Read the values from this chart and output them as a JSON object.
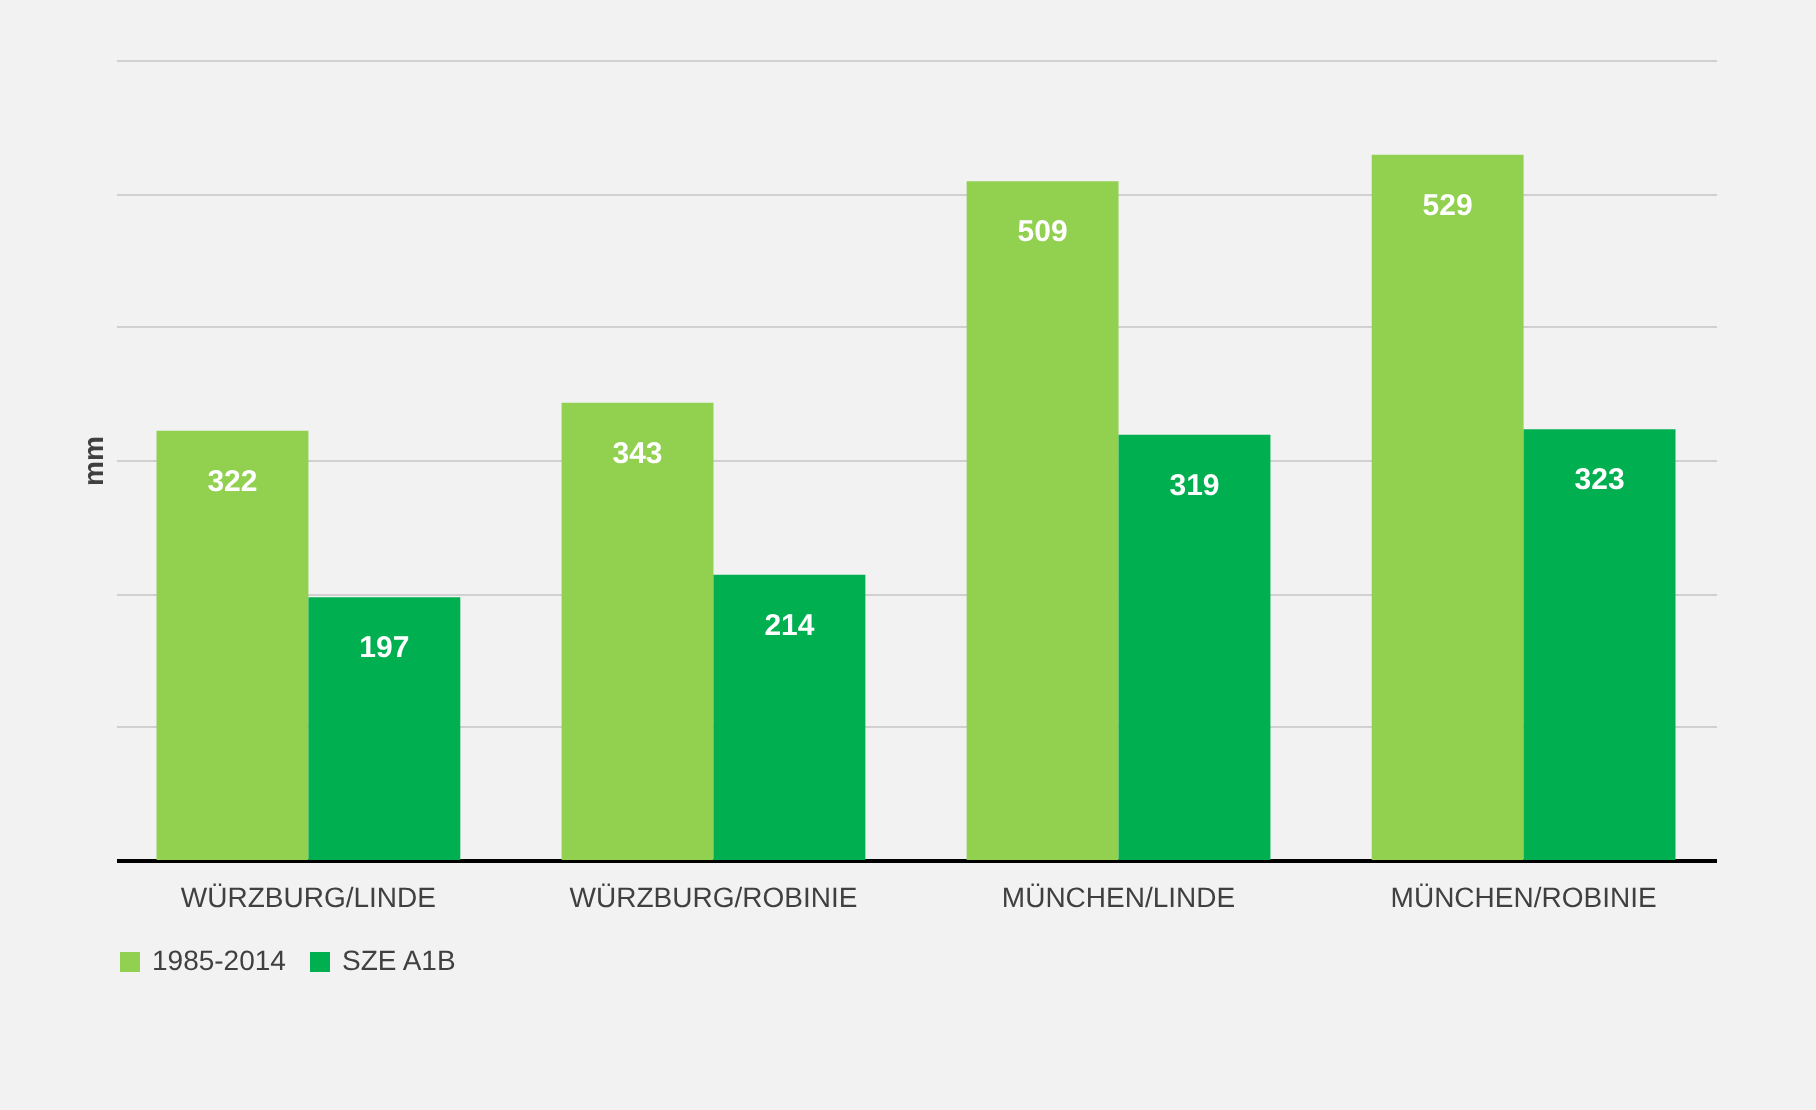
{
  "chart_data": {
    "type": "bar",
    "ylabel": "mm",
    "categories": [
      "WÜRZBURG/LINDE",
      "WÜRZBURG/ROBINIE",
      "MÜNCHEN/LINDE",
      "MÜNCHEN/ROBINIE"
    ],
    "series": [
      {
        "name": "1985-2014",
        "color": "#92d050",
        "values": [
          322,
          343,
          509,
          529
        ]
      },
      {
        "name": "SZE A1B",
        "color": "#00b050",
        "values": [
          197,
          214,
          319,
          323
        ]
      }
    ],
    "ylim": [
      0,
      600
    ],
    "yticks": [
      {
        "value": 0,
        "label": null
      },
      {
        "value": 100,
        "label": null
      },
      {
        "value": 200,
        "label": null
      },
      {
        "value": 300,
        "label": null
      },
      {
        "value": 400,
        "label": null
      },
      {
        "value": 500,
        "label": null
      },
      {
        "value": 600,
        "label": null
      }
    ],
    "tick_labels": "x",
    "grid": "y",
    "legend": "bottom",
    "data_labels": true
  }
}
